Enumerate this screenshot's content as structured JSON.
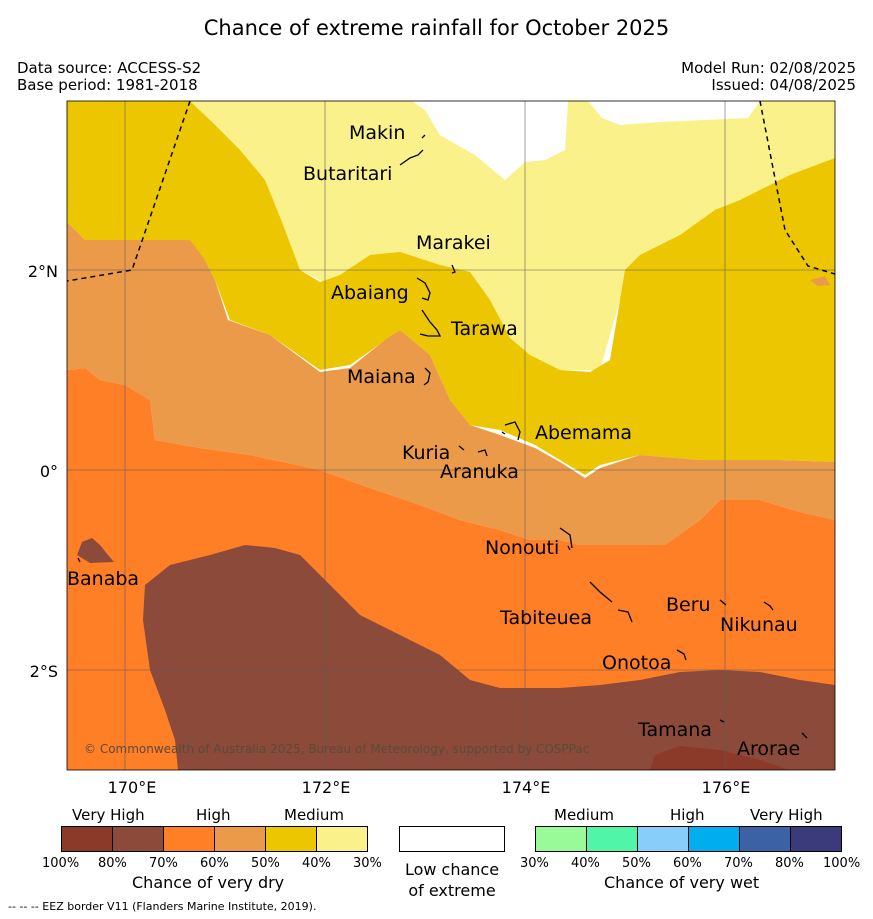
{
  "title": "Chance of extreme rainfall for October 2025",
  "data_source": "Data source: ACCESS-S2",
  "base_period": "Base period: 1981-2018",
  "model_run": "Model Run: 02/08/2025",
  "issued": "Issued: 04/08/2025",
  "lat_labels": [
    "2°N",
    "0°",
    "2°S"
  ],
  "lon_labels": [
    "170°E",
    "172°E",
    "174°E",
    "176°E"
  ],
  "places": [
    "Makin",
    "Butaritari",
    "Marakei",
    "Abaiang",
    "Tarawa",
    "Maiana",
    "Abemama",
    "Kuria",
    "Aranuka",
    "Nonouti",
    "Banaba",
    "Tabiteuea",
    "Beru",
    "Nikunau",
    "Onotoa",
    "Tamana",
    "Arorae"
  ],
  "copyright": "© Commonwealth of Australia 2025, Bureau of Meteorology, supported by COSPPac",
  "dry_legend": {
    "categories": [
      "Very High",
      "High",
      "Medium"
    ],
    "ticks": [
      "100%",
      "80%",
      "70%",
      "60%",
      "50%",
      "40%",
      "30%"
    ],
    "colors": [
      "#8b3a2a",
      "#8b4a3a",
      "#ff7f27",
      "#eb9a4a",
      "#ecc600",
      "#fbf18b"
    ],
    "title": "Chance of very dry"
  },
  "neutral_legend": {
    "title_line1": "Low chance",
    "title_line2": "of extreme",
    "color": "#ffffff"
  },
  "wet_legend": {
    "categories": [
      "Medium",
      "High",
      "Very High"
    ],
    "ticks": [
      "30%",
      "40%",
      "50%",
      "60%",
      "70%",
      "80%",
      "100%"
    ],
    "colors": [
      "#98fb98",
      "#50f5a8",
      "#87cefa",
      "#00aeef",
      "#3a62a4",
      "#3b3a7a"
    ],
    "title": "Chance of very wet"
  },
  "footer": "--  --  -- EEZ border V11 (Flanders Marine Institute, 2019)."
}
